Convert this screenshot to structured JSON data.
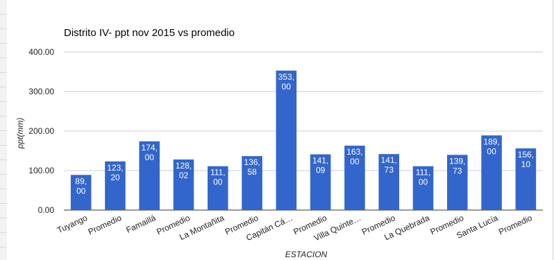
{
  "chart_data": {
    "type": "bar",
    "title": "Distrito IV- ppt nov 2015 vs promedio",
    "xlabel": "ESTACION",
    "ylabel": "ppt(mm)",
    "ylim": [
      0,
      400
    ],
    "yticks": [
      "0.00",
      "100.00",
      "200.00",
      "300.00",
      "400.00"
    ],
    "grid": true,
    "legend": "none",
    "bar_color": "#3366cc",
    "categories": [
      "Tuyango",
      "Promedio",
      "Famaillá",
      "Promedio",
      "La Montañita",
      "Promedio",
      "Capitán Cá…",
      "Promedio",
      "Villa Quinte…",
      "Promedio",
      "La Quebrada",
      "Promedio",
      "Santa Lucía",
      "Promedio"
    ],
    "values": [
      89.0,
      123.2,
      174.0,
      128.02,
      111.0,
      136.58,
      353.0,
      141.09,
      163.0,
      141.73,
      111.0,
      139.73,
      189.0,
      156.1
    ],
    "data_labels": [
      [
        "89,",
        "00"
      ],
      [
        "123,",
        "20"
      ],
      [
        "174,",
        "00"
      ],
      [
        "128,",
        "02"
      ],
      [
        "111,",
        "00"
      ],
      [
        "136,",
        "58"
      ],
      [
        "353,",
        "00"
      ],
      [
        "141,",
        "09"
      ],
      [
        "163,",
        "00"
      ],
      [
        "141,",
        "73"
      ],
      [
        "111,",
        "00"
      ],
      [
        "139,",
        "73"
      ],
      [
        "189,",
        "00"
      ],
      [
        "156,",
        "10"
      ]
    ]
  }
}
